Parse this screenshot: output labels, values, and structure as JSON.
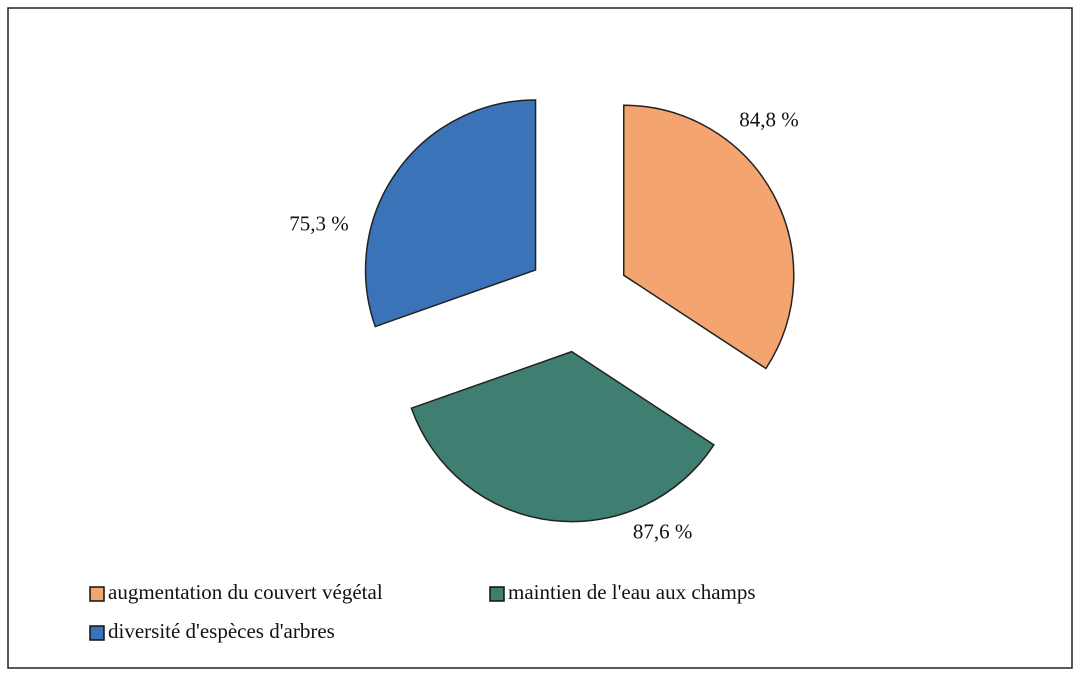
{
  "chart_data": {
    "type": "pie",
    "categories": [
      "augmentation du couvert végétal",
      "maintien de l'eau aux champs",
      "diversité d'espèces d'arbres"
    ],
    "values": [
      84.8,
      87.6,
      75.3
    ],
    "value_labels": [
      "84,8 %",
      "87,6 %",
      "75,3 %"
    ],
    "colors": [
      "#f4a46e",
      "#3f7f72",
      "#3a73b8"
    ],
    "legend": "bottom"
  }
}
